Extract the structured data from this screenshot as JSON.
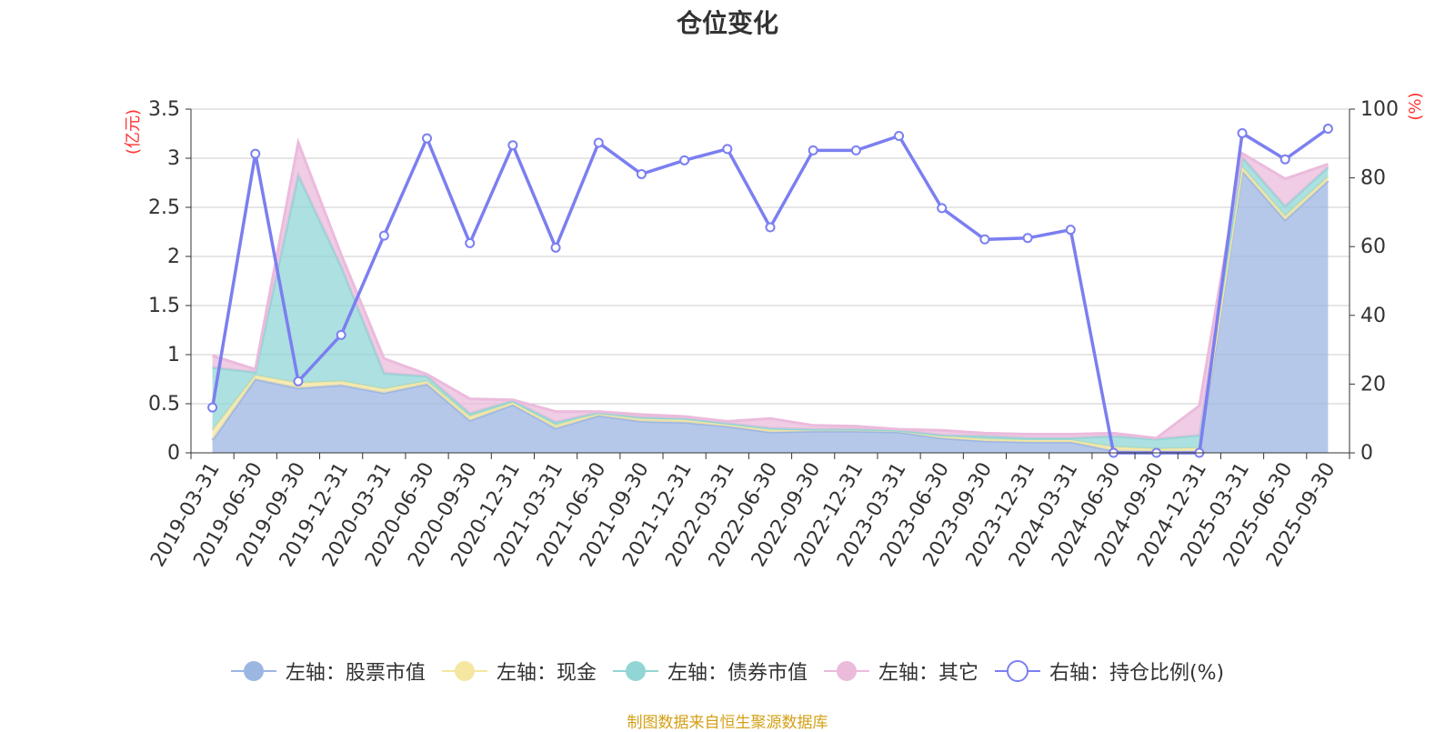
{
  "chart_data": {
    "type": "area",
    "title": "仓位变化",
    "y_left_label": "(亿元)",
    "y_right_label": "(%)",
    "y_left_range": [
      0,
      3.5
    ],
    "y_left_ticks": [
      "0",
      "0.5",
      "1",
      "1.5",
      "2",
      "2.5",
      "3",
      "3.5"
    ],
    "y_right_range": [
      0,
      100
    ],
    "y_right_ticks": [
      "0",
      "20",
      "40",
      "60",
      "80",
      "100"
    ],
    "grid": true,
    "legend_position": "bottom",
    "x": [
      "2019-03-31",
      "2019-06-30",
      "2019-09-30",
      "2019-12-31",
      "2020-03-31",
      "2020-06-30",
      "2020-09-30",
      "2020-12-31",
      "2021-03-31",
      "2021-06-30",
      "2021-09-30",
      "2021-12-31",
      "2022-03-31",
      "2022-06-30",
      "2022-09-30",
      "2022-12-31",
      "2023-03-31",
      "2023-06-30",
      "2023-09-30",
      "2023-12-31",
      "2024-03-31",
      "2024-06-30",
      "2024-09-30",
      "2024-12-31",
      "2025-03-31",
      "2025-06-30",
      "2025-09-30"
    ],
    "series": [
      {
        "name": "左轴：股票市值",
        "axis": "left",
        "stack": true,
        "color": "#9cb6e2",
        "values": [
          0.13,
          0.75,
          0.66,
          0.69,
          0.61,
          0.7,
          0.33,
          0.49,
          0.25,
          0.38,
          0.32,
          0.31,
          0.27,
          0.21,
          0.22,
          0.22,
          0.21,
          0.15,
          0.12,
          0.11,
          0.11,
          0.02,
          0.01,
          0.01,
          2.87,
          2.37,
          2.77
        ]
      },
      {
        "name": "左轴：现金",
        "axis": "left",
        "stack": true,
        "color": "#f5e6a1",
        "values": [
          0.1,
          0.04,
          0.05,
          0.04,
          0.04,
          0.03,
          0.04,
          0.02,
          0.03,
          0.03,
          0.03,
          0.03,
          0.02,
          0.03,
          0.02,
          0.02,
          0.02,
          0.02,
          0.02,
          0.02,
          0.02,
          0.04,
          0.03,
          0.04,
          0.04,
          0.04,
          0.04
        ]
      },
      {
        "name": "左轴：债券市值",
        "axis": "left",
        "stack": true,
        "color": "#92d5d5",
        "values": [
          0.64,
          0.03,
          2.12,
          1.17,
          0.16,
          0.05,
          0.03,
          0.02,
          0.03,
          0.0,
          0.01,
          0.01,
          0.01,
          0.01,
          0.0,
          0.0,
          0.0,
          0.01,
          0.03,
          0.02,
          0.02,
          0.11,
          0.1,
          0.13,
          0.1,
          0.1,
          0.1
        ]
      },
      {
        "name": "左轴：其它",
        "axis": "left",
        "stack": true,
        "color": "#ebbbdc",
        "values": [
          0.12,
          0.03,
          0.33,
          0.12,
          0.15,
          0.02,
          0.15,
          0.01,
          0.11,
          0.01,
          0.03,
          0.02,
          0.02,
          0.1,
          0.04,
          0.03,
          0.01,
          0.05,
          0.03,
          0.04,
          0.04,
          0.03,
          0.01,
          0.3,
          0.04,
          0.28,
          0.03
        ]
      },
      {
        "name": "右轴：持仓比例(%)",
        "axis": "right",
        "type": "line",
        "color": "#7b7ff0",
        "values": [
          13.2,
          87.0,
          20.8,
          34.3,
          63.2,
          91.5,
          61.0,
          89.5,
          59.7,
          90.2,
          81.1,
          85.1,
          88.4,
          65.6,
          88.0,
          88.0,
          92.2,
          71.2,
          62.1,
          62.5,
          64.9,
          0.0,
          0.0,
          0.0,
          93.0,
          85.4,
          94.3
        ]
      }
    ]
  },
  "source": "制图数据来自恒生聚源数据库"
}
